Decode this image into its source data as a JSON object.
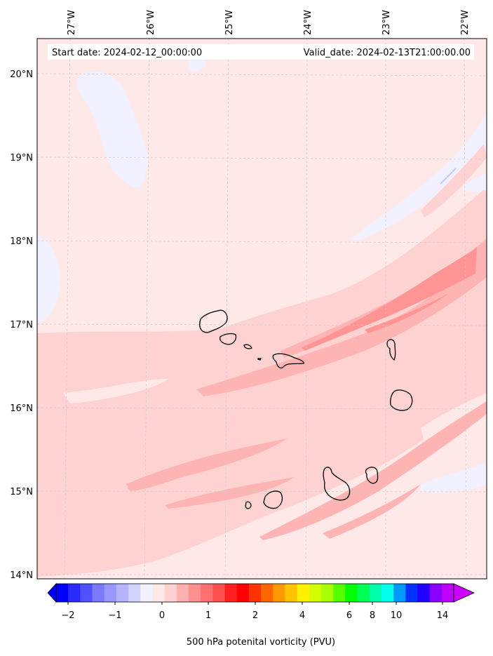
{
  "map": {
    "start_label": "Start date: 2024-02-12_00:00:00",
    "valid_label": "Valid_date: 2024-02-13T21:00:00.00",
    "lon_ticks": [
      "27°W",
      "26°W",
      "25°W",
      "24°W",
      "23°W",
      "22°W"
    ],
    "lat_ticks": [
      "20°N",
      "19°N",
      "18°N",
      "17°N",
      "16°N",
      "15°N",
      "14°N"
    ],
    "field_name": "500 hPa potenital vorticity (PVU)"
  },
  "colorbar": {
    "ticks": [
      "−2",
      "−1",
      "0",
      "1",
      "2",
      "4",
      "6",
      "8",
      "10",
      "14"
    ],
    "colors": [
      "#0000ff",
      "#2a2aff",
      "#5050ff",
      "#7a7aff",
      "#9898ff",
      "#b4b4ff",
      "#d2d2ff",
      "#f0f0ff",
      "#ffe8e8",
      "#ffd0d0",
      "#ffb0b0",
      "#ff9090",
      "#ff7070",
      "#ff5050",
      "#ff2020",
      "#ff0000",
      "#ff3300",
      "#ff6600",
      "#ff9900",
      "#ffc400",
      "#fff000",
      "#d4ff00",
      "#a8ff00",
      "#55ff00",
      "#00ff00",
      "#00ff55",
      "#00ffaa",
      "#00ffee",
      "#0099ff",
      "#0033ff",
      "#2200ff",
      "#8800ff",
      "#c000ff"
    ],
    "under_color": "#0000ff",
    "over_color": "#cc00ff"
  }
}
